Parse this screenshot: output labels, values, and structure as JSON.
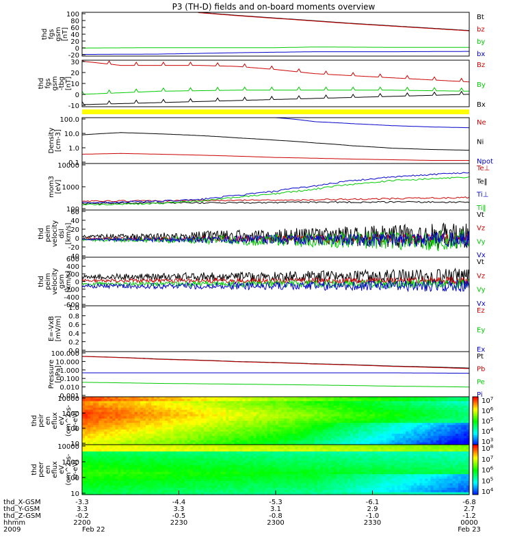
{
  "title": "P3 (TH-D) fields and on-board moments overview",
  "chart_data": [
    {
      "type": "line",
      "panel": "fgs_gsm",
      "ylabel": [
        "thd",
        "fgs",
        "gsm",
        "[nT]"
      ],
      "yticks": [
        "100",
        "80",
        "60",
        "40",
        "20",
        "0",
        "-20"
      ],
      "ylim": [
        -25,
        105
      ],
      "series": [
        {
          "name": "Bt",
          "color": "#000000",
          "x": [
            0.3,
            0.4,
            0.5,
            0.6,
            0.7,
            0.8,
            0.9,
            1.0
          ],
          "y": [
            105,
            96,
            88,
            80,
            72,
            65,
            58,
            51
          ]
        },
        {
          "name": "bz",
          "color": "#cc0000",
          "x": [
            0.3,
            0.4,
            0.5,
            0.6,
            0.7,
            0.8,
            0.9,
            1.0
          ],
          "y": [
            104,
            95,
            87,
            79,
            71,
            64,
            57,
            50
          ]
        },
        {
          "name": "by",
          "color": "#00cc00",
          "x": [
            0,
            0.2,
            0.4,
            0.5,
            0.6,
            0.8,
            1.0
          ],
          "y": [
            -1,
            0,
            0,
            0,
            2,
            1,
            1
          ]
        },
        {
          "name": "bx",
          "color": "#0000cc",
          "x": [
            0,
            0.2,
            0.4,
            0.6,
            0.8,
            1.0
          ],
          "y": [
            -20,
            -19,
            -15,
            -12,
            -12,
            -11
          ]
        }
      ]
    },
    {
      "type": "line",
      "panel": "fgs_gsm_tbg",
      "ylabel": [
        "thd",
        "fgs",
        "gsm",
        "-tbg",
        "[nT]"
      ],
      "yticks": [
        "30",
        "20",
        "10",
        "0",
        "-10"
      ],
      "ylim": [
        -14,
        31
      ],
      "series": [
        {
          "name": "Bz",
          "color": "#cc0000",
          "x": [
            0,
            0.1,
            0.2,
            0.3,
            0.4,
            0.5,
            0.6,
            0.7,
            0.8,
            0.9,
            1.0
          ],
          "y": [
            30,
            26,
            26,
            26,
            25,
            22,
            18,
            16,
            14,
            12,
            10
          ]
        },
        {
          "name": "By",
          "color": "#00cc00",
          "x": [
            0,
            0.2,
            0.4,
            0.6,
            0.8,
            1.0
          ],
          "y": [
            -2,
            1,
            2,
            2,
            2,
            1
          ]
        },
        {
          "name": "Bx",
          "color": "#000000",
          "x": [
            0,
            0.2,
            0.4,
            0.6,
            0.8,
            1.0
          ],
          "y": [
            -12,
            -10,
            -8,
            -6,
            -4,
            -2
          ]
        }
      ]
    },
    {
      "type": "line",
      "panel": "density",
      "ylabel": [
        "Density",
        "[cm-3]"
      ],
      "yticks": [
        "100.0",
        "10.0",
        "1.0",
        "0.1"
      ],
      "ylim": [
        0.07,
        200
      ],
      "yscale": "log",
      "series": [
        {
          "name": "Ne",
          "color": "#cc0000",
          "x": [
            0,
            0.1,
            0.3,
            0.5,
            0.7,
            0.9,
            1.0
          ],
          "y": [
            0.35,
            0.4,
            0.3,
            0.2,
            0.15,
            0.12,
            0.12
          ]
        },
        {
          "name": "Ni",
          "color": "#000000",
          "x": [
            0,
            0.1,
            0.2,
            0.3,
            0.4,
            0.5,
            0.6,
            0.7,
            0.8,
            0.9,
            1.0
          ],
          "y": [
            10,
            15,
            12,
            9,
            6,
            4,
            2.5,
            1.5,
            1.0,
            0.8,
            0.7
          ]
        },
        {
          "name": "Npot",
          "color": "#0000cc",
          "x": [
            0.5,
            0.6,
            0.7,
            0.8,
            0.9,
            1.0
          ],
          "y": [
            200,
            100,
            70,
            50,
            40,
            35
          ]
        }
      ]
    },
    {
      "type": "line",
      "panel": "temperature",
      "ylabel": [
        "mom3",
        "[eV]"
      ],
      "yticks": [
        "10000",
        "1000",
        "100"
      ],
      "ylim": [
        150,
        13000
      ],
      "yscale": "log",
      "series": [
        {
          "name": "Te⊥",
          "color": "#cc0000",
          "x": [
            0,
            0.2,
            0.4,
            0.6,
            0.8,
            1.0
          ],
          "y": [
            350,
            360,
            380,
            400,
            450,
            500
          ]
        },
        {
          "name": "Te‖",
          "color": "#000000",
          "x": [
            0,
            0.2,
            0.4,
            0.6,
            0.8,
            1.0
          ],
          "y": [
            280,
            300,
            300,
            320,
            320,
            320
          ]
        },
        {
          "name": "Ti⊥",
          "color": "#0000cc",
          "x": [
            0,
            0.2,
            0.3,
            0.4,
            0.5,
            0.6,
            0.7,
            0.8,
            0.9,
            1.0
          ],
          "y": [
            300,
            350,
            400,
            600,
            900,
            1500,
            2500,
            3500,
            4500,
            5500
          ]
        },
        {
          "name": "Ti‖",
          "color": "#00cc00",
          "x": [
            0,
            0.2,
            0.3,
            0.4,
            0.5,
            0.6,
            0.7,
            0.8,
            0.9,
            1.0
          ],
          "y": [
            250,
            280,
            350,
            500,
            700,
            1100,
            1800,
            2500,
            3000,
            3500
          ]
        }
      ]
    },
    {
      "type": "line",
      "panel": "velocity_dsl",
      "ylabel": [
        "thd",
        "peim",
        "velocity",
        "dsl",
        "[km/s]"
      ],
      "yticks": [
        "60",
        "40",
        "20",
        "0",
        "-20",
        "-40"
      ],
      "ylim": [
        -40,
        62
      ],
      "series": [
        {
          "name": "Vt",
          "color": "#000000",
          "base": 5,
          "amp_start": 3,
          "amp_end": 30
        },
        {
          "name": "Vz",
          "color": "#cc0000",
          "base": 0,
          "amp_start": 2,
          "amp_end": 12
        },
        {
          "name": "Vy",
          "color": "#00cc00",
          "base": -3,
          "amp_start": 2,
          "amp_end": 25
        },
        {
          "name": "Vx",
          "color": "#0000cc",
          "base": -2,
          "amp_start": 2,
          "amp_end": 18
        }
      ]
    },
    {
      "type": "line",
      "panel": "velocity_gsm",
      "ylabel": [
        "thd",
        "peim",
        "velocity",
        "gsm",
        "[km/s]"
      ],
      "yticks": [
        "600",
        "400",
        "200",
        "0",
        "-200",
        "-400",
        "-600"
      ],
      "ylim": [
        -600,
        600
      ],
      "series": [
        {
          "name": "Vt",
          "color": "#000000",
          "base": 120,
          "amp_start": 60,
          "amp_end": 200
        },
        {
          "name": "Vz",
          "color": "#cc0000",
          "base": 20,
          "amp_start": 40,
          "amp_end": 90
        },
        {
          "name": "Vy",
          "color": "#00cc00",
          "base": -60,
          "amp_start": 40,
          "amp_end": 120
        },
        {
          "name": "Vx",
          "color": "#0000cc",
          "base": -110,
          "amp_start": 50,
          "amp_end": 150
        }
      ]
    },
    {
      "type": "line",
      "panel": "efield",
      "ylabel": [
        "E=-VxB",
        "[mV/m]"
      ],
      "yticks": [
        "1.0",
        "0.8",
        "0.6",
        "0.4",
        "0.2",
        "0.0"
      ],
      "ylim": [
        0,
        1
      ],
      "series": [
        {
          "name": "Ez",
          "color": "#cc0000"
        },
        {
          "name": "Ey",
          "color": "#00cc00"
        },
        {
          "name": "Ex",
          "color": "#0000cc"
        }
      ]
    },
    {
      "type": "line",
      "panel": "pressure",
      "ylabel": [
        "Pressure",
        "[nPa]"
      ],
      "yticks": [
        "100.000",
        "10.000",
        "1.000",
        "0.100",
        "0.010",
        "0.001"
      ],
      "ylim": [
        0.001,
        100
      ],
      "yscale": "log",
      "series": [
        {
          "name": "Pt",
          "color": "#000000",
          "x": [
            0,
            0.2,
            0.4,
            0.6,
            0.8,
            1.0
          ],
          "y": [
            30,
            15,
            8,
            4.5,
            2.5,
            1.5
          ]
        },
        {
          "name": "Pb",
          "color": "#cc0000",
          "x": [
            0,
            0.2,
            0.4,
            0.6,
            0.8,
            1.0
          ],
          "y": [
            29,
            14,
            7.5,
            4.2,
            2.3,
            1.3
          ]
        },
        {
          "name": "Pe",
          "color": "#00cc00",
          "x": [
            0,
            0.2,
            0.4,
            0.6,
            0.8,
            1.0
          ],
          "y": [
            0.04,
            0.03,
            0.025,
            0.02,
            0.015,
            0.012
          ]
        },
        {
          "name": "Pi",
          "color": "#0000cc",
          "x": [
            0,
            0.2,
            0.4,
            0.6,
            0.8,
            1.0
          ],
          "y": [
            0.45,
            0.45,
            0.45,
            0.45,
            0.45,
            0.4
          ]
        }
      ]
    },
    {
      "type": "heatmap",
      "panel": "ion_spectrogram",
      "ylabel": [
        "thd",
        "peir",
        "en",
        "eflux",
        "eV",
        "(cm^2-s-",
        "sr-eV)"
      ],
      "yticks": [
        "10000",
        "1000",
        "100",
        "10"
      ],
      "colorbar_ticks": [
        "10^7",
        "10^6",
        "10^5",
        "10^4",
        "10^3"
      ]
    },
    {
      "type": "heatmap",
      "panel": "electron_spectrogram",
      "ylabel": [
        "thd",
        "peer",
        "en",
        "eflux",
        "eV",
        "(cm^2-s-",
        "sr-eV)"
      ],
      "yticks": [
        "10000",
        "1000",
        "100",
        "10"
      ],
      "colorbar_ticks": [
        "10^8",
        "10^7",
        "10^6",
        "10^5",
        "10^4"
      ]
    }
  ],
  "x_axis": {
    "rows": [
      {
        "label": "thd_X-GSM",
        "values": [
          "-3.3",
          "-4.4",
          "-5.3",
          "-6.1",
          "-6.8"
        ]
      },
      {
        "label": "thd_Y-GSM",
        "values": [
          "3.3",
          "3.3",
          "3.1",
          "2.9",
          "2.7"
        ]
      },
      {
        "label": "thd_Z-GSM",
        "values": [
          "-0.2",
          "-0.5",
          "-0.8",
          "-1.0",
          "-1.2"
        ]
      },
      {
        "label": "hhmm",
        "values": [
          "2200",
          "2230",
          "2300",
          "2330",
          "0000"
        ]
      },
      {
        "label": "2009",
        "values": [
          "Feb 22",
          "",
          "",
          "",
          "Feb 23"
        ]
      }
    ]
  }
}
